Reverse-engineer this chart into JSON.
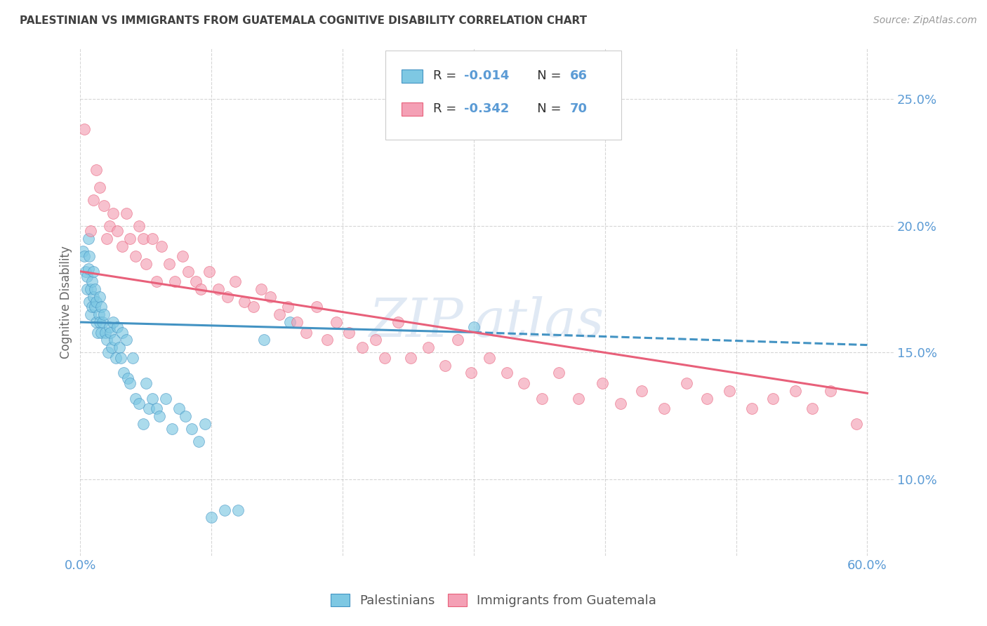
{
  "title": "PALESTINIAN VS IMMIGRANTS FROM GUATEMALA COGNITIVE DISABILITY CORRELATION CHART",
  "source": "Source: ZipAtlas.com",
  "ylabel": "Cognitive Disability",
  "xlim": [
    0.0,
    0.62
  ],
  "ylim": [
    0.07,
    0.27
  ],
  "yticks": [
    0.1,
    0.15,
    0.2,
    0.25
  ],
  "ytick_labels": [
    "10.0%",
    "15.0%",
    "20.0%",
    "25.0%"
  ],
  "xticks": [
    0.0,
    0.1,
    0.2,
    0.3,
    0.4,
    0.5,
    0.6
  ],
  "xtick_labels": [
    "0.0%",
    "",
    "",
    "",
    "",
    "",
    "60.0%"
  ],
  "legend_R1": "-0.014",
  "legend_N1": "66",
  "legend_R2": "-0.342",
  "legend_N2": "70",
  "color_blue": "#7ec8e3",
  "color_pink": "#f4a0b5",
  "color_blue_line": "#4393c3",
  "color_pink_line": "#e8607a",
  "color_axis_label": "#5b9bd5",
  "color_title": "#404040",
  "background": "#ffffff",
  "palestinians_x": [
    0.002,
    0.003,
    0.004,
    0.005,
    0.005,
    0.006,
    0.006,
    0.007,
    0.007,
    0.008,
    0.008,
    0.009,
    0.009,
    0.01,
    0.01,
    0.011,
    0.011,
    0.012,
    0.012,
    0.013,
    0.014,
    0.015,
    0.015,
    0.016,
    0.016,
    0.017,
    0.018,
    0.019,
    0.02,
    0.021,
    0.022,
    0.023,
    0.024,
    0.025,
    0.026,
    0.027,
    0.028,
    0.03,
    0.031,
    0.032,
    0.033,
    0.035,
    0.036,
    0.038,
    0.04,
    0.042,
    0.045,
    0.048,
    0.05,
    0.052,
    0.055,
    0.058,
    0.06,
    0.065,
    0.07,
    0.075,
    0.08,
    0.085,
    0.09,
    0.095,
    0.1,
    0.11,
    0.12,
    0.14,
    0.16,
    0.3
  ],
  "palestinians_y": [
    0.19,
    0.188,
    0.182,
    0.175,
    0.18,
    0.195,
    0.183,
    0.188,
    0.17,
    0.165,
    0.175,
    0.178,
    0.168,
    0.172,
    0.182,
    0.168,
    0.175,
    0.162,
    0.17,
    0.158,
    0.165,
    0.162,
    0.172,
    0.168,
    0.158,
    0.162,
    0.165,
    0.158,
    0.155,
    0.15,
    0.16,
    0.158,
    0.152,
    0.162,
    0.155,
    0.148,
    0.16,
    0.152,
    0.148,
    0.158,
    0.142,
    0.155,
    0.14,
    0.138,
    0.148,
    0.132,
    0.13,
    0.122,
    0.138,
    0.128,
    0.132,
    0.128,
    0.125,
    0.132,
    0.12,
    0.128,
    0.125,
    0.12,
    0.115,
    0.122,
    0.085,
    0.088,
    0.088,
    0.155,
    0.162,
    0.16
  ],
  "guatemala_x": [
    0.003,
    0.008,
    0.01,
    0.012,
    0.015,
    0.018,
    0.02,
    0.022,
    0.025,
    0.028,
    0.032,
    0.035,
    0.038,
    0.042,
    0.045,
    0.048,
    0.05,
    0.055,
    0.058,
    0.062,
    0.068,
    0.072,
    0.078,
    0.082,
    0.088,
    0.092,
    0.098,
    0.105,
    0.112,
    0.118,
    0.125,
    0.132,
    0.138,
    0.145,
    0.152,
    0.158,
    0.165,
    0.172,
    0.18,
    0.188,
    0.195,
    0.205,
    0.215,
    0.225,
    0.232,
    0.242,
    0.252,
    0.265,
    0.278,
    0.288,
    0.298,
    0.312,
    0.325,
    0.338,
    0.352,
    0.365,
    0.38,
    0.398,
    0.412,
    0.428,
    0.445,
    0.462,
    0.478,
    0.495,
    0.512,
    0.528,
    0.545,
    0.558,
    0.572,
    0.592
  ],
  "guatemala_y": [
    0.238,
    0.198,
    0.21,
    0.222,
    0.215,
    0.208,
    0.195,
    0.2,
    0.205,
    0.198,
    0.192,
    0.205,
    0.195,
    0.188,
    0.2,
    0.195,
    0.185,
    0.195,
    0.178,
    0.192,
    0.185,
    0.178,
    0.188,
    0.182,
    0.178,
    0.175,
    0.182,
    0.175,
    0.172,
    0.178,
    0.17,
    0.168,
    0.175,
    0.172,
    0.165,
    0.168,
    0.162,
    0.158,
    0.168,
    0.155,
    0.162,
    0.158,
    0.152,
    0.155,
    0.148,
    0.162,
    0.148,
    0.152,
    0.145,
    0.155,
    0.142,
    0.148,
    0.142,
    0.138,
    0.132,
    0.142,
    0.132,
    0.138,
    0.13,
    0.135,
    0.128,
    0.138,
    0.132,
    0.135,
    0.128,
    0.132,
    0.135,
    0.128,
    0.135,
    0.122
  ],
  "blue_trend_x0": 0.0,
  "blue_trend_x1": 0.3,
  "blue_trend_x2": 0.6,
  "blue_trend_y0": 0.162,
  "blue_trend_y1": 0.158,
  "blue_trend_y2": 0.153,
  "pink_trend_x0": 0.0,
  "pink_trend_x2": 0.6,
  "pink_trend_y0": 0.182,
  "pink_trend_y2": 0.134
}
